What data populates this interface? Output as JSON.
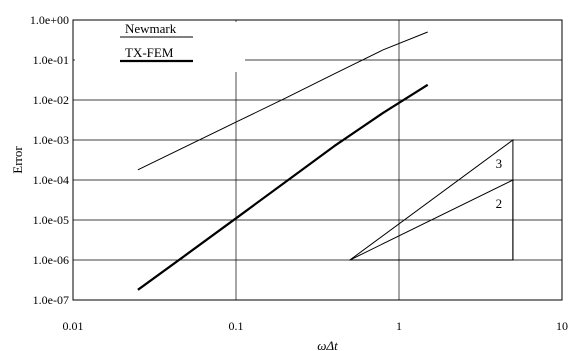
{
  "chart_data": {
    "type": "line",
    "xscale": "log",
    "yscale": "log",
    "xlim": [
      0.01,
      10
    ],
    "ylim": [
      1e-07,
      1
    ],
    "xlabel": "ωΔt",
    "ylabel": "Error",
    "x_ticks": [
      "0.01",
      "0.1",
      "1",
      "10"
    ],
    "y_ticks": [
      "1.0e-07",
      "1.0e-06",
      "1.0e-05",
      "1.0e-04",
      "1.0e-03",
      "1.0e-02",
      "1.0e-01",
      "1.0e+00"
    ],
    "grid": true,
    "legend_position": "top-left",
    "series": [
      {
        "name": "Newmark",
        "stroke_width": "thin",
        "x": [
          0.025,
          0.1,
          0.2,
          0.4,
          0.8,
          1.5
        ],
        "y": [
          0.00018,
          0.0028,
          0.011,
          0.045,
          0.18,
          0.5
        ]
      },
      {
        "name": "TX-FEM",
        "stroke_width": "thick",
        "x": [
          0.025,
          0.05,
          0.1,
          0.2,
          0.4,
          0.8,
          1.5
        ],
        "y": [
          1.8e-07,
          1.4e-06,
          1.1e-05,
          8.8e-05,
          0.0007,
          0.0048,
          0.024
        ]
      }
    ],
    "slope_triangles": [
      {
        "label": "3",
        "x": [
          0.5,
          5,
          5
        ],
        "y": [
          1e-06,
          0.001,
          1e-06
        ]
      },
      {
        "label": "2",
        "x": [
          0.5,
          5,
          5
        ],
        "y": [
          1e-06,
          0.0001,
          1e-06
        ]
      }
    ]
  }
}
